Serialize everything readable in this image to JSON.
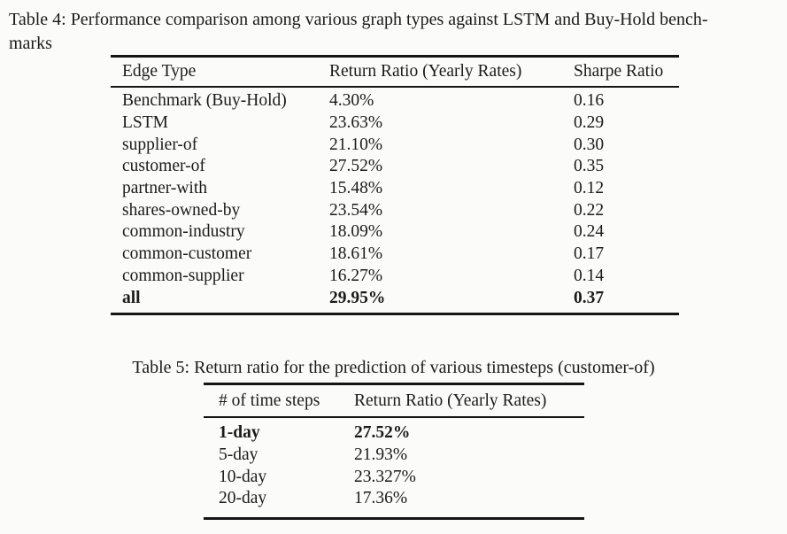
{
  "table4": {
    "caption_lines": [
      "Table 4: Performance comparison among various graph types against LSTM and Buy-Hold bench-",
      "marks"
    ],
    "columns": [
      "Edge Type",
      "Return Ratio (Yearly Rates)",
      "Sharpe Ratio"
    ],
    "rows": [
      {
        "edge_type": "Benchmark (Buy-Hold)",
        "return_ratio": "4.30%",
        "sharpe_ratio": "0.16"
      },
      {
        "edge_type": "LSTM",
        "return_ratio": "23.63%",
        "sharpe_ratio": "0.29"
      },
      {
        "edge_type": "supplier-of",
        "return_ratio": "21.10%",
        "sharpe_ratio": "0.30"
      },
      {
        "edge_type": "customer-of",
        "return_ratio": "27.52%",
        "sharpe_ratio": "0.35"
      },
      {
        "edge_type": "partner-with",
        "return_ratio": "15.48%",
        "sharpe_ratio": "0.12"
      },
      {
        "edge_type": "shares-owned-by",
        "return_ratio": "23.54%",
        "sharpe_ratio": "0.22"
      },
      {
        "edge_type": "common-industry",
        "return_ratio": "18.09%",
        "sharpe_ratio": "0.24"
      },
      {
        "edge_type": "common-customer",
        "return_ratio": "18.61%",
        "sharpe_ratio": "0.17"
      },
      {
        "edge_type": "common-supplier",
        "return_ratio": "16.27%",
        "sharpe_ratio": "0.14"
      },
      {
        "edge_type": "all",
        "return_ratio": "29.95%",
        "sharpe_ratio": "0.37"
      }
    ]
  },
  "table5": {
    "caption": "Table 5: Return ratio for the prediction of various timesteps (customer-of)",
    "columns": [
      "# of time steps",
      "Return Ratio (Yearly Rates)"
    ],
    "rows": [
      {
        "timesteps": "1-day",
        "return_ratio": "27.52%"
      },
      {
        "timesteps": "5-day",
        "return_ratio": "21.93%"
      },
      {
        "timesteps": "10-day",
        "return_ratio": "23.327%"
      },
      {
        "timesteps": "20-day",
        "return_ratio": "17.36%"
      }
    ]
  }
}
